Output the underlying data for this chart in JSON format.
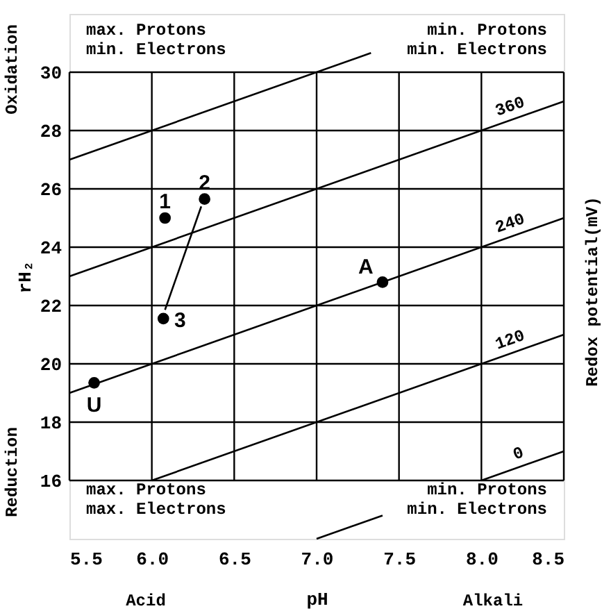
{
  "chart_data": {
    "type": "scatter",
    "xlabel": "pH",
    "ylabel": "rH₂",
    "y2label": "Redox potential(mV)",
    "xlim": [
      5.5,
      8.5
    ],
    "ylim": [
      14,
      32
    ],
    "xticks": [
      5.5,
      {
        "value": 6,
        "label": "6.0"
      },
      6.5,
      {
        "value": 7,
        "label": "7.0"
      },
      7.5,
      {
        "value": 8,
        "label": "8.0"
      },
      8.5
    ],
    "yticks": [
      16,
      18,
      20,
      22,
      24,
      26,
      28,
      30
    ],
    "grid": true,
    "series": [
      {
        "color": "#000000",
        "marker": "circle",
        "x": [
          6.08,
          6.32,
          6.07,
          7.4,
          5.65
        ],
        "values": [
          25.0,
          25.65,
          21.55,
          22.8,
          19.35
        ]
      },
      {
        "type": "line",
        "color": "#000000",
        "x": [
          5.5,
          7.33
        ],
        "values": [
          27,
          30.66
        ]
      },
      {
        "type": "line",
        "name": "360",
        "color": "#000000",
        "x": [
          5.5,
          8.5
        ],
        "values": [
          23,
          29
        ]
      },
      {
        "type": "line",
        "name": "240",
        "color": "#000000",
        "x": [
          5.5,
          8.5
        ],
        "values": [
          19,
          25
        ]
      },
      {
        "type": "line",
        "name": "120",
        "color": "#000000",
        "x": [
          6.0,
          8.5
        ],
        "values": [
          16,
          21
        ]
      },
      {
        "type": "line",
        "name": "0",
        "color": "#000000",
        "x": [
          8.0,
          8.5
        ],
        "values": [
          16,
          17
        ]
      },
      {
        "type": "line",
        "color": "#000000",
        "x": [
          7.0,
          7.4
        ],
        "values": [
          14,
          14.8
        ]
      },
      {
        "type": "line",
        "color": "#000000",
        "x": [
          6.3,
          6.08
        ],
        "values": [
          25.4,
          21.85
        ]
      }
    ],
    "annotations": [
      "max. Protons\nmin. Electrons",
      "min. Protons\nmin. Electrons",
      "max. Protons\nmax. Electrons",
      "min. Protons\nmin. Electrons",
      "Oxidation",
      "Reduction",
      "Acid",
      "Alkali",
      {
        "text": "1",
        "x": 6.08,
        "y": 25.0
      },
      {
        "text": "2",
        "x": 6.32,
        "y": 25.65
      },
      {
        "text": "3",
        "x": 6.07,
        "y": 21.55
      },
      {
        "text": "A",
        "x": 7.4,
        "y": 22.8
      },
      {
        "text": "U",
        "x": 5.65,
        "y": 19.35
      }
    ]
  }
}
